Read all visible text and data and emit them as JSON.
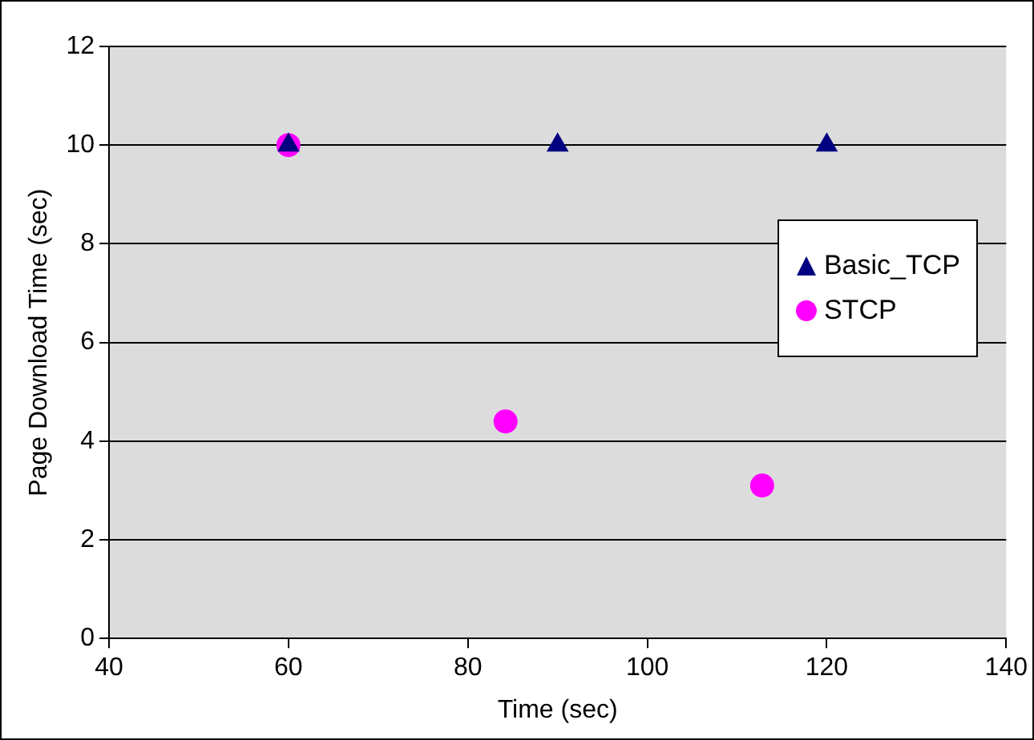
{
  "chart_data": {
    "type": "scatter",
    "xlabel": "Time (sec)",
    "ylabel": "Page Download Time (sec)",
    "xlim": [
      40,
      140
    ],
    "xticks": [
      40,
      60,
      80,
      100,
      120,
      140
    ],
    "ylim": [
      0,
      12
    ],
    "yticks": [
      0,
      2,
      4,
      6,
      8,
      10,
      12
    ],
    "grid": "y",
    "legend": "right",
    "series": [
      {
        "name": "Basic_TCP",
        "color": "#000080",
        "marker": "triangle",
        "x": [
          60,
          90,
          120
        ],
        "values": [
          10,
          10,
          10
        ]
      },
      {
        "name": "STCP",
        "color": "#ff00ff",
        "marker": "circle",
        "x": [
          60,
          84.2,
          112.8
        ],
        "values": [
          10,
          4.4,
          3.1
        ]
      }
    ]
  }
}
